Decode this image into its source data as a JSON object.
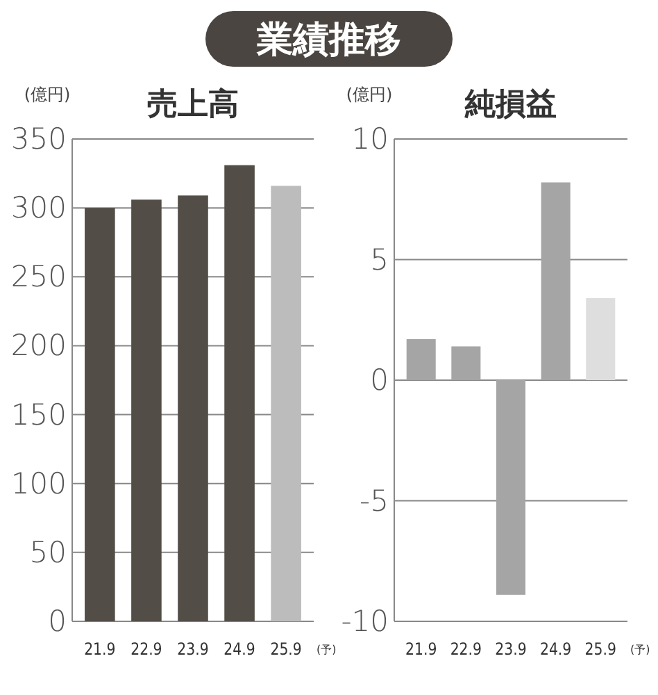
{
  "chart_data": [
    {
      "type": "other",
      "title": "業績推移"
    },
    {
      "type": "bar",
      "title": "売上高",
      "ylabel": "(億円)",
      "categories": [
        "21.9",
        "22.9",
        "23.9",
        "24.9",
        "25.9"
      ],
      "values": [
        300,
        306,
        309,
        331,
        316
      ],
      "colors": [
        "#524e47",
        "#524e47",
        "#524e47",
        "#524e47",
        "#bcbcbc"
      ],
      "ylim": [
        0,
        350
      ],
      "yticks": [
        0,
        50,
        100,
        150,
        200,
        250,
        300,
        350
      ],
      "grid": "y",
      "annotations": [
        "(予)"
      ]
    },
    {
      "type": "bar",
      "title": "純損益",
      "ylabel": "(億円)",
      "categories": [
        "21.9",
        "22.9",
        "23.9",
        "24.9",
        "25.9"
      ],
      "values": [
        1.7,
        1.4,
        -8.9,
        8.2,
        3.4
      ],
      "colors": [
        "#a5a5a5",
        "#a5a5a5",
        "#a5a5a5",
        "#a5a5a5",
        "#dedede"
      ],
      "ylim": [
        -10,
        10
      ],
      "yticks": [
        -10,
        -5,
        0,
        5,
        10
      ],
      "grid": "y",
      "annotations": [
        "(予)"
      ]
    }
  ]
}
